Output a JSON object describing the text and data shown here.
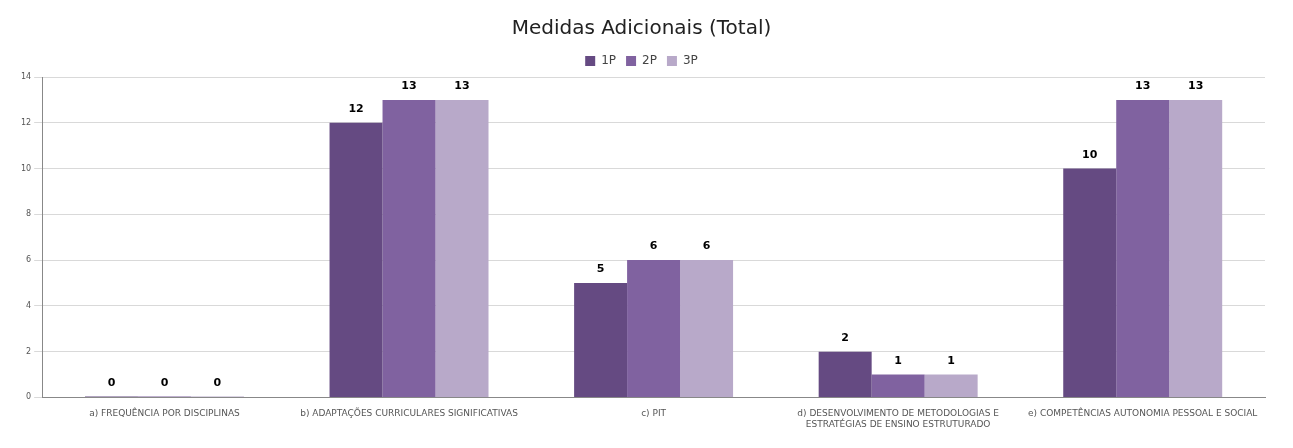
{
  "chart_data": {
    "type": "bar",
    "title": "Medidas Adicionais (Total)",
    "categories": [
      "a) FREQUÊNCIA POR DISCIPLINAS",
      "b) ADAPTAÇÕES CURRICULARES SIGNIFICATIVAS",
      "c) PIT",
      "d) DESENVOLVIMENTO DE METODOLOGIAS E ESTRATÉGIAS DE ENSINO ESTRUTURADO",
      "e) COMPETÊNCIAS AUTONOMIA PESSOAL E SOCIAL"
    ],
    "series": [
      {
        "name": "1P",
        "color": "#654a82",
        "values": [
          0,
          12,
          5,
          2,
          10
        ]
      },
      {
        "name": "2P",
        "color": "#8062a0",
        "values": [
          0,
          13,
          6,
          1,
          13
        ]
      },
      {
        "name": "3P",
        "color": "#b8a9c9",
        "values": [
          0,
          13,
          6,
          1,
          13
        ]
      }
    ],
    "ylim": [
      0,
      14
    ],
    "yticks": [
      0,
      2,
      4,
      6,
      8,
      10,
      12,
      14
    ],
    "grid": "y",
    "legend": "top",
    "data_labels": true
  }
}
